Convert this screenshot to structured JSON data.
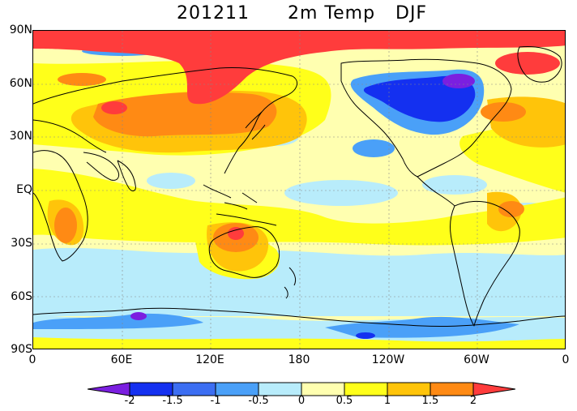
{
  "title": {
    "date": "201211",
    "variable": "2m Temp",
    "season": "DJF"
  },
  "map": {
    "projection": "equirectangular, Pacific-centered (0E at left edge)",
    "lat_labels": [
      "90N",
      "60N",
      "30N",
      "EQ",
      "30S",
      "60S",
      "90S"
    ],
    "lon_labels": [
      "0",
      "60E",
      "120E",
      "180",
      "120W",
      "60W",
      "0"
    ],
    "field": "2m temperature anomaly"
  },
  "colorbar": {
    "levels": [
      "-2",
      "-1.5",
      "-1",
      "-0.5",
      "0",
      "0.5",
      "1",
      "1.5",
      "2"
    ],
    "colors": [
      "#7b1fe0",
      "#1430f0",
      "#3c6ef2",
      "#4aa0f8",
      "#b8ecfb",
      "#ffffb0",
      "#ffff1a",
      "#ffc40a",
      "#ff8a14",
      "#ff3c3c"
    ]
  }
}
